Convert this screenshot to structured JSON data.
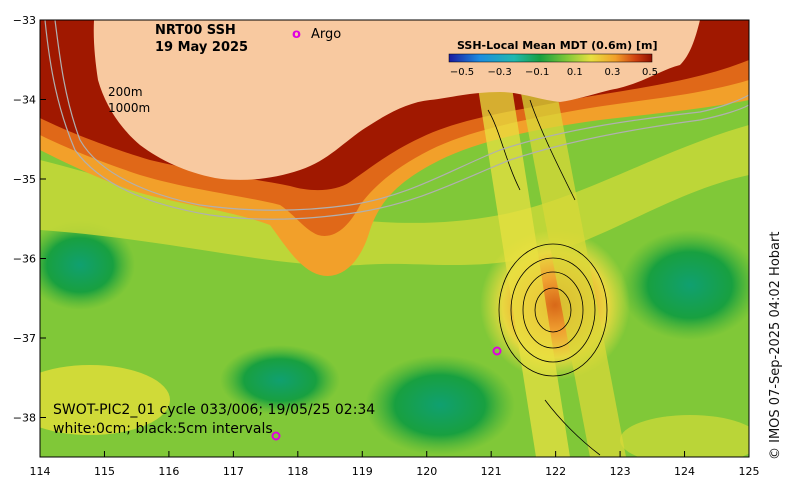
{
  "title": {
    "product": "NRT00 SSH",
    "date": "19 May 2025"
  },
  "legend": {
    "argo_symbol": "o",
    "argo_label": "Argo",
    "colorbar_title": "SSH-Local Mean MDT (0.6m) [m]",
    "colorbar_ticks": [
      "−0.5",
      "−0.3",
      "−0.1",
      "0.1",
      "0.3",
      "0.5"
    ],
    "contour_labels": [
      "200m",
      "1000m"
    ]
  },
  "overlay": {
    "swot_line1": "SWOT-PIC2_01 cycle 033/006; 19/05/25 02:34",
    "swot_line2": "white:0cm; black:5cm intervals"
  },
  "credit": "© IMOS 07-Sep-2025 04:02 Hobart",
  "axes": {
    "x_ticks": [
      "114",
      "115",
      "116",
      "117",
      "118",
      "119",
      "120",
      "121",
      "122",
      "123",
      "124",
      "125"
    ],
    "y_ticks": [
      "−33",
      "−34",
      "−35",
      "−36",
      "−37",
      "−38"
    ]
  },
  "colors": {
    "land": "#f8c9a0",
    "high": "#a01800",
    "mid": "#f2a02a",
    "yellow": "#e8e040",
    "green": "#80c838",
    "darkgreen": "#18a040",
    "argo": "#e000e0",
    "bathy": "#b0b0b0"
  }
}
